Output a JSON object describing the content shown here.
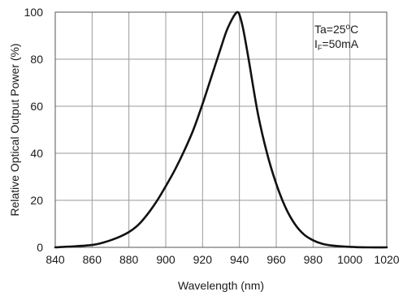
{
  "chart_data": {
    "type": "line",
    "title": "",
    "xlabel": "Wavelength (nm)",
    "ylabel": "Relative Optical Output Power  (%)",
    "xlim": [
      840,
      1020
    ],
    "ylim": [
      0,
      100
    ],
    "xticks": [
      840,
      860,
      880,
      900,
      920,
      940,
      960,
      980,
      1000,
      1020
    ],
    "yticks": [
      0,
      20,
      40,
      60,
      80,
      100
    ],
    "grid": true,
    "legend": "none",
    "annotations": {
      "ta_prefix": "Ta=25",
      "ta_degree": "o",
      "ta_unit": "C",
      "if_main": "I",
      "if_sub": "F",
      "if_value": "=50mA"
    },
    "series": [
      {
        "color": "#111111",
        "x": [
          840,
          850,
          860,
          865,
          870,
          875,
          880,
          885,
          890,
          895,
          900,
          905,
          910,
          915,
          920,
          925,
          930,
          933,
          936,
          938,
          939,
          940,
          942,
          945,
          950,
          955,
          960,
          965,
          970,
          975,
          980,
          985,
          990,
          1000,
          1010,
          1020
        ],
        "y": [
          0,
          0.4,
          1,
          1.8,
          3,
          4.5,
          6.5,
          9.5,
          14,
          19.5,
          26,
          33,
          41,
          50,
          61,
          73,
          85,
          92,
          97,
          99.5,
          100,
          99,
          93,
          80,
          57,
          40,
          27,
          17,
          10,
          5.5,
          3,
          1.5,
          0.8,
          0.2,
          0,
          0
        ]
      }
    ]
  }
}
